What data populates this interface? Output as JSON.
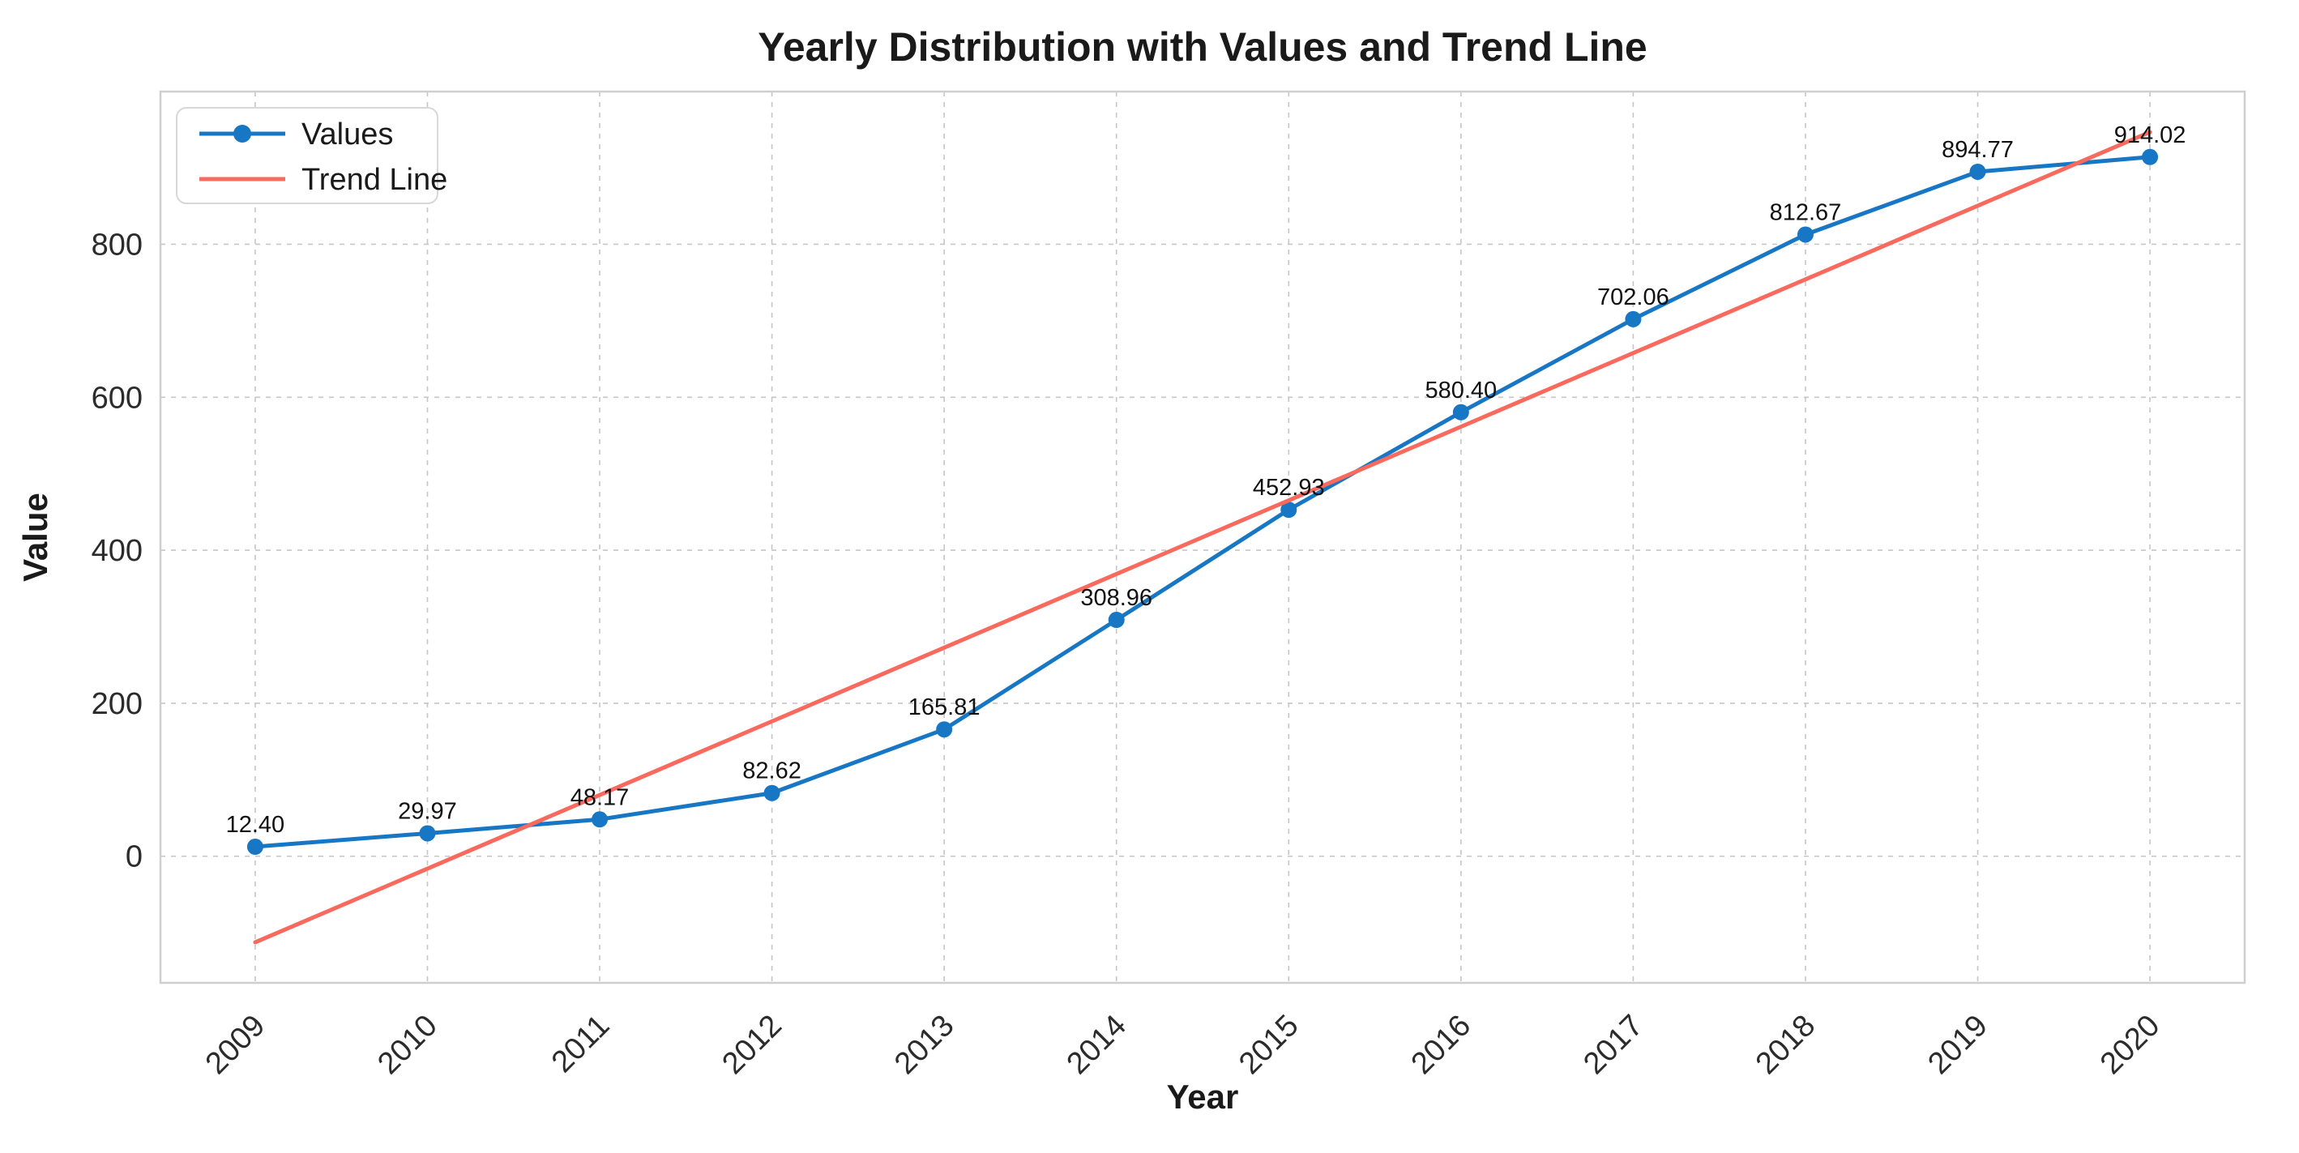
{
  "figure": {
    "background": "#ffffff"
  },
  "chart_data": {
    "type": "line",
    "title": "Yearly Distribution with Values and Trend Line",
    "xlabel": "Year",
    "ylabel": "Value",
    "categories": [
      "2009",
      "2010",
      "2011",
      "2012",
      "2013",
      "2014",
      "2015",
      "2016",
      "2017",
      "2018",
      "2019",
      "2020"
    ],
    "series": [
      {
        "name": "Values",
        "color": "#1777c4",
        "line_width": 5,
        "marker": "circle",
        "marker_size": 10,
        "data_labels": true,
        "values": [
          12.4,
          29.97,
          48.17,
          82.62,
          165.81,
          308.96,
          452.93,
          580.4,
          702.06,
          812.67,
          894.77,
          914.02
        ]
      },
      {
        "name": "Trend Line",
        "color": "#f9695d",
        "line_width": 5,
        "marker": "none",
        "data_labels": false,
        "values": [
          -112.51,
          -16.22,
          80.06,
          176.35,
          272.63,
          368.92,
          465.21,
          561.49,
          657.78,
          754.06,
          850.35,
          946.63
        ]
      }
    ],
    "yticks": [
      0,
      200,
      400,
      600,
      800
    ],
    "ylim": [
      -165.5,
      999.6
    ],
    "x_margin": 0.55,
    "grid": true,
    "grid_style": "dashed",
    "grid_color": "#c6c6c6",
    "frame_color": "#cfcfcf",
    "legend": {
      "position": "upper-left",
      "entries": [
        "Values",
        "Trend Line"
      ]
    }
  }
}
